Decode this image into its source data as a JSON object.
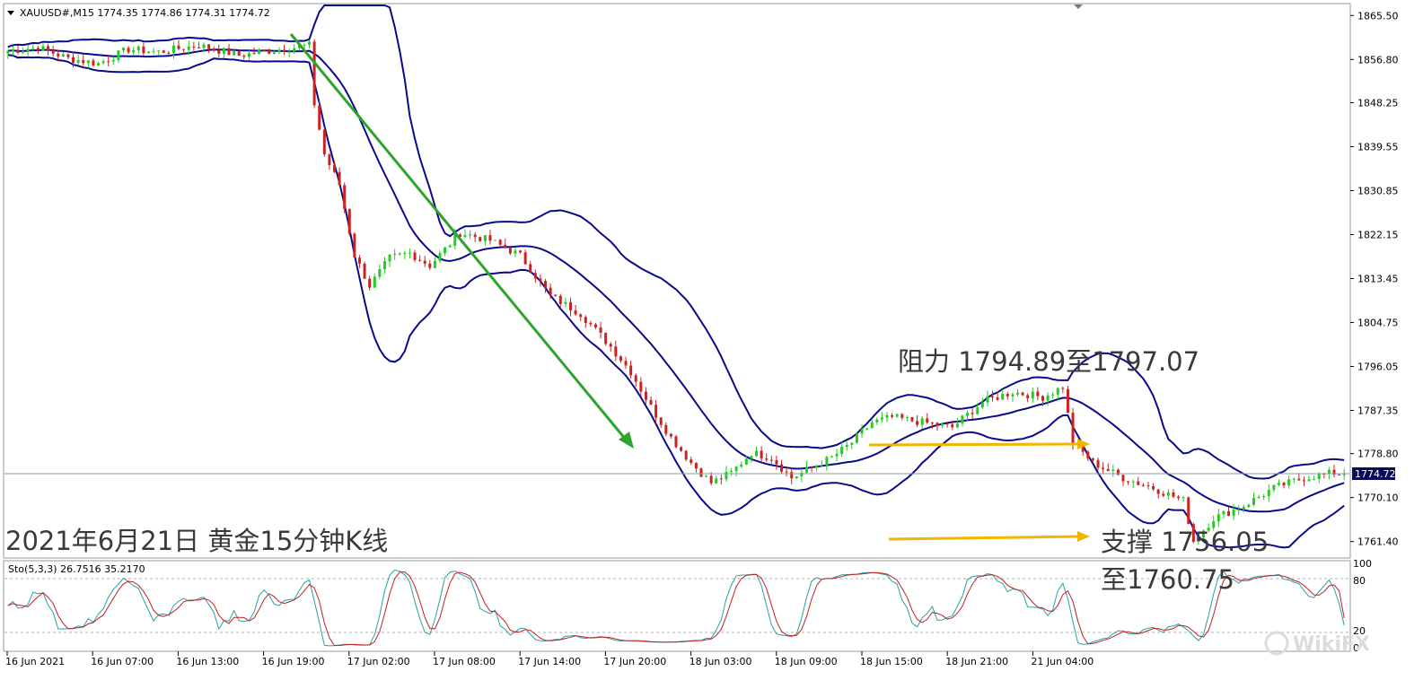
{
  "header": {
    "symbol_line": "XAUUSD#,M15  1774.35 1774.86 1774.31 1774.72"
  },
  "stoch_header": "Sto(5,3,3) 26.7516 35.2170",
  "last_price_tag": "1774.72",
  "annotations": {
    "title": "2021年6月21日 黄金15分钟K线",
    "resistance": "阻力 1794.89至1797.07",
    "support_line1": "支撑 1756.05",
    "support_line2": "至1760.75"
  },
  "watermark": "WikiFX",
  "colors": {
    "background": "#ffffff",
    "bull_candle": "#22cc22",
    "bear_candle": "#cc2222",
    "bollinger": "#0a0a8c",
    "trend_arrow": "#2ea32e",
    "level_arrows": "#f2b500",
    "stoch_main": "#2aa0a0",
    "stoch_signal": "#c02020",
    "last_price_line": "#8a9aa6"
  },
  "chart_data": [
    {
      "type": "candlestick",
      "symbol": "XAUUSD#",
      "timeframe": "M15",
      "ylim": [
        1758.5,
        1867.5
      ],
      "y_ticks": [
        "1865.50",
        "1856.80",
        "1848.25",
        "1839.55",
        "1830.85",
        "1822.15",
        "1813.45",
        "1804.75",
        "1796.05",
        "1787.35",
        "1778.80",
        "1770.10",
        "1761.40"
      ],
      "x_ticks": [
        "16 Jun 2021",
        "16 Jun 07:00",
        "16 Jun 13:00",
        "16 Jun 19:00",
        "17 Jun 02:00",
        "17 Jun 08:00",
        "17 Jun 14:00",
        "17 Jun 20:00",
        "18 Jun 03:00",
        "18 Jun 09:00",
        "18 Jun 15:00",
        "18 Jun 21:00",
        "21 Jun 04:00"
      ],
      "last_price": 1774.72,
      "price_path": [
        [
          0,
          1858.5
        ],
        [
          6,
          1859.2
        ],
        [
          12,
          1857.0
        ],
        [
          18,
          1856.0
        ],
        [
          24,
          1858.8
        ],
        [
          30,
          1858.3
        ],
        [
          38,
          1859.6
        ],
        [
          46,
          1857.6
        ],
        [
          54,
          1858.8
        ],
        [
          60,
          1859.6
        ],
        [
          61,
          1848.0
        ],
        [
          63,
          1838.0
        ],
        [
          66,
          1832.0
        ],
        [
          69,
          1818.0
        ],
        [
          72,
          1812.0
        ],
        [
          76,
          1817.5
        ],
        [
          80,
          1818.5
        ],
        [
          84,
          1816.0
        ],
        [
          90,
          1822.5
        ],
        [
          96,
          1821.0
        ],
        [
          102,
          1818.0
        ],
        [
          108,
          1810.0
        ],
        [
          114,
          1806.5
        ],
        [
          120,
          1800.0
        ],
        [
          124,
          1795.0
        ],
        [
          128,
          1788.0
        ],
        [
          132,
          1782.0
        ],
        [
          136,
          1777.0
        ],
        [
          140,
          1773.0
        ],
        [
          144,
          1775.0
        ],
        [
          148,
          1779.0
        ],
        [
          152,
          1778.0
        ],
        [
          156,
          1774.0
        ],
        [
          160,
          1776.0
        ],
        [
          164,
          1778.0
        ],
        [
          168,
          1781.0
        ],
        [
          172,
          1785.0
        ],
        [
          176,
          1786.0
        ],
        [
          182,
          1785.0
        ],
        [
          188,
          1784.0
        ],
        [
          194,
          1789.0
        ],
        [
          200,
          1791.0
        ],
        [
          206,
          1790.0
        ],
        [
          210,
          1792.0
        ],
        [
          212,
          1781.0
        ],
        [
          216,
          1777.0
        ],
        [
          222,
          1774.0
        ],
        [
          228,
          1772.0
        ],
        [
          234,
          1769.5
        ],
        [
          236,
          1761.5
        ],
        [
          240,
          1766.0
        ],
        [
          246,
          1768.5
        ],
        [
          252,
          1772.0
        ],
        [
          258,
          1774.0
        ],
        [
          264,
          1775.0
        ],
        [
          266,
          1774.72
        ]
      ],
      "bollinger_bands": true
    },
    {
      "type": "line",
      "indicator": "Stochastic Oscillator",
      "params": "(5,3,3)",
      "main_value": 26.7516,
      "signal_value": 35.217,
      "ylim": [
        0,
        100
      ],
      "y_ticks": [
        "100",
        "80",
        "20",
        "0"
      ],
      "levels": [
        80,
        20
      ]
    }
  ]
}
